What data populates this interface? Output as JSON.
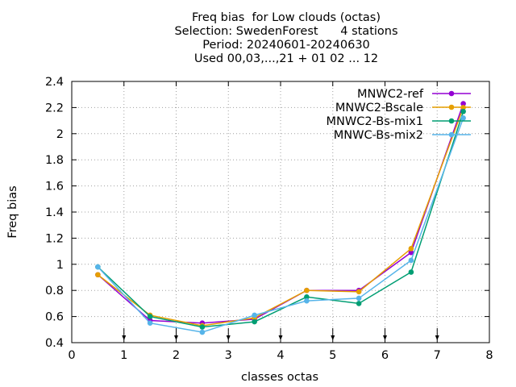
{
  "chart_data": {
    "type": "line",
    "title_lines": [
      "Freq bias  for Low clouds (octas)",
      "Selection: SwedenForest      4 stations",
      "Period: 20240601-20240630",
      "Used 00,03,...,21 + 01 02 ... 12"
    ],
    "xlabel": "classes octas",
    "ylabel": "Freq bias",
    "xlim": [
      0,
      8
    ],
    "ylim": [
      0.4,
      2.4
    ],
    "xticks": [
      "0",
      "1",
      "2",
      "3",
      "4",
      "5",
      "6",
      "7",
      "8"
    ],
    "yticks": [
      "0.4",
      "0.6",
      "0.8",
      "1",
      "1.2",
      "1.4",
      "1.6",
      "1.8",
      "2",
      "2.2",
      "2.4"
    ],
    "grid": true,
    "legend_position": "top-right",
    "x": [
      0.5,
      1.5,
      2.5,
      3.5,
      4.5,
      5.5,
      6.5,
      7.5
    ],
    "series": [
      {
        "name": "MNWC2-ref",
        "color": "#9400d3",
        "values": [
          0.92,
          0.57,
          0.55,
          0.58,
          0.8,
          0.8,
          1.09,
          2.23
        ]
      },
      {
        "name": "MNWC2-Bscale",
        "color": "#e69f00",
        "values": [
          0.92,
          0.61,
          0.53,
          0.59,
          0.8,
          0.79,
          1.12,
          2.2
        ]
      },
      {
        "name": "MNWC2-Bs-mix1",
        "color": "#009e73",
        "values": [
          0.98,
          0.6,
          0.52,
          0.56,
          0.75,
          0.7,
          0.94,
          2.17
        ]
      },
      {
        "name": "MNWC-Bs-mix2",
        "color": "#56b4e9",
        "values": [
          0.98,
          0.55,
          0.48,
          0.61,
          0.72,
          0.74,
          1.03,
          2.12
        ]
      }
    ]
  }
}
